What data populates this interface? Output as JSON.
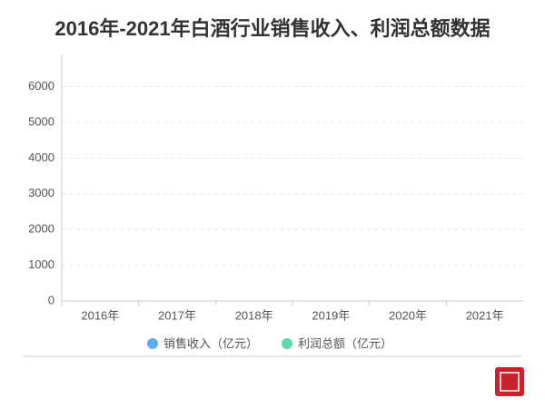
{
  "chart_data": {
    "type": "bar",
    "title": "2016年-2021年白酒行业销售收入、利润总额数据",
    "categories": [
      "2016年",
      "2017年",
      "2018年",
      "2019年",
      "2020年",
      "2021年"
    ],
    "series": [
      {
        "name": "销售收入（亿元）",
        "color": "#5aaef0",
        "values": [
          null,
          null,
          null,
          null,
          null,
          null
        ]
      },
      {
        "name": "利润总额（亿元）",
        "color": "#5fd8b0",
        "values": [
          null,
          null,
          null,
          null,
          null,
          null
        ]
      }
    ],
    "ylim": [
      0,
      6900
    ],
    "yticks": [
      0,
      1000,
      2000,
      3000,
      4000,
      5000,
      6000
    ],
    "grid": true,
    "legend": "bottom"
  }
}
